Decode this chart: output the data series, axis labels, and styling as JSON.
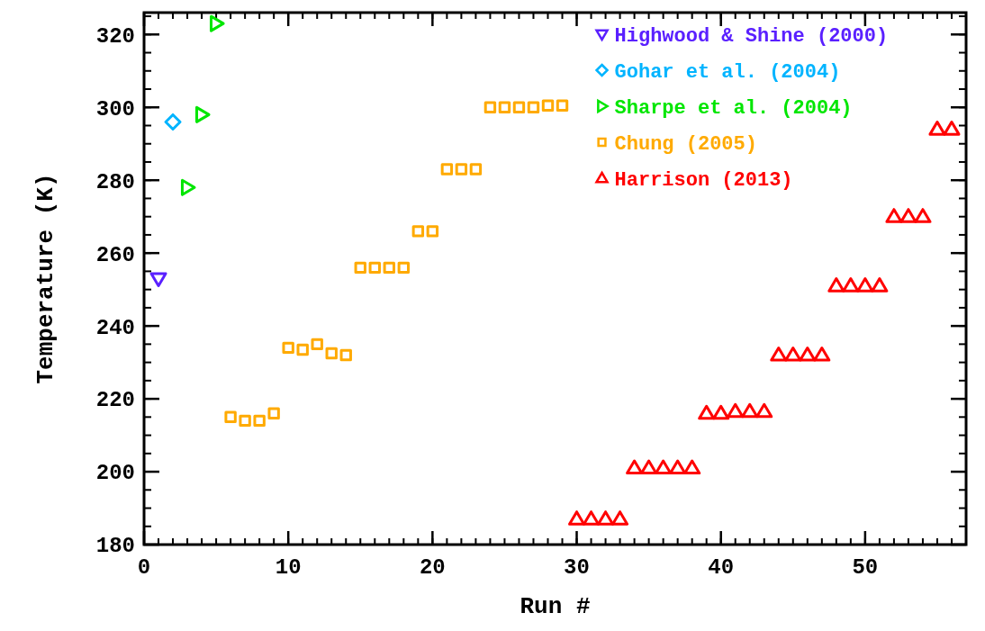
{
  "chart_data": {
    "type": "scatter",
    "xlabel": "Run #",
    "ylabel": "Temperature (K)",
    "xlim": [
      0,
      57
    ],
    "ylim": [
      180,
      326
    ],
    "xticks": [
      0,
      10,
      20,
      30,
      40,
      50
    ],
    "yticks": [
      180,
      200,
      220,
      240,
      260,
      280,
      300,
      320
    ],
    "legend": "top right",
    "grid": false,
    "series": [
      {
        "name": "Highwood & Shine (2000)",
        "color": "#5a20ff",
        "marker": "triangle-down",
        "x": [
          1
        ],
        "values": [
          253
        ]
      },
      {
        "name": "Gohar et al. (2004)",
        "color": "#00b4ff",
        "marker": "diamond",
        "x": [
          2
        ],
        "values": [
          296
        ]
      },
      {
        "name": "Sharpe et al. (2004)",
        "color": "#00e600",
        "marker": "triangle-right",
        "x": [
          3,
          4,
          5
        ],
        "values": [
          278,
          298,
          323
        ]
      },
      {
        "name": "Chung (2005)",
        "color": "#ffaa00",
        "marker": "square",
        "x": [
          6,
          7,
          8,
          9,
          10,
          11,
          12,
          13,
          14,
          15,
          16,
          17,
          18,
          19,
          20,
          21,
          22,
          23,
          24,
          25,
          26,
          27,
          28,
          29
        ],
        "values": [
          215,
          214,
          214,
          216,
          234,
          233.5,
          235,
          232.5,
          232,
          256,
          256,
          256,
          256,
          266,
          266,
          283,
          283,
          283,
          300,
          300,
          300,
          300,
          300.5,
          300.5
        ]
      },
      {
        "name": "Harrison (2013)",
        "color": "#ff0000",
        "marker": "triangle",
        "x": [
          30,
          31,
          32,
          33,
          34,
          35,
          36,
          37,
          38,
          39,
          40,
          41,
          42,
          43,
          44,
          45,
          46,
          47,
          48,
          49,
          50,
          51,
          52,
          53,
          54,
          55,
          56
        ],
        "values": [
          187,
          187,
          187,
          187,
          201,
          201,
          201,
          201,
          201,
          216,
          216,
          216.5,
          216.5,
          216.5,
          232,
          232,
          232,
          232,
          251,
          251,
          251,
          251,
          270,
          270,
          270,
          294,
          294
        ]
      }
    ]
  }
}
